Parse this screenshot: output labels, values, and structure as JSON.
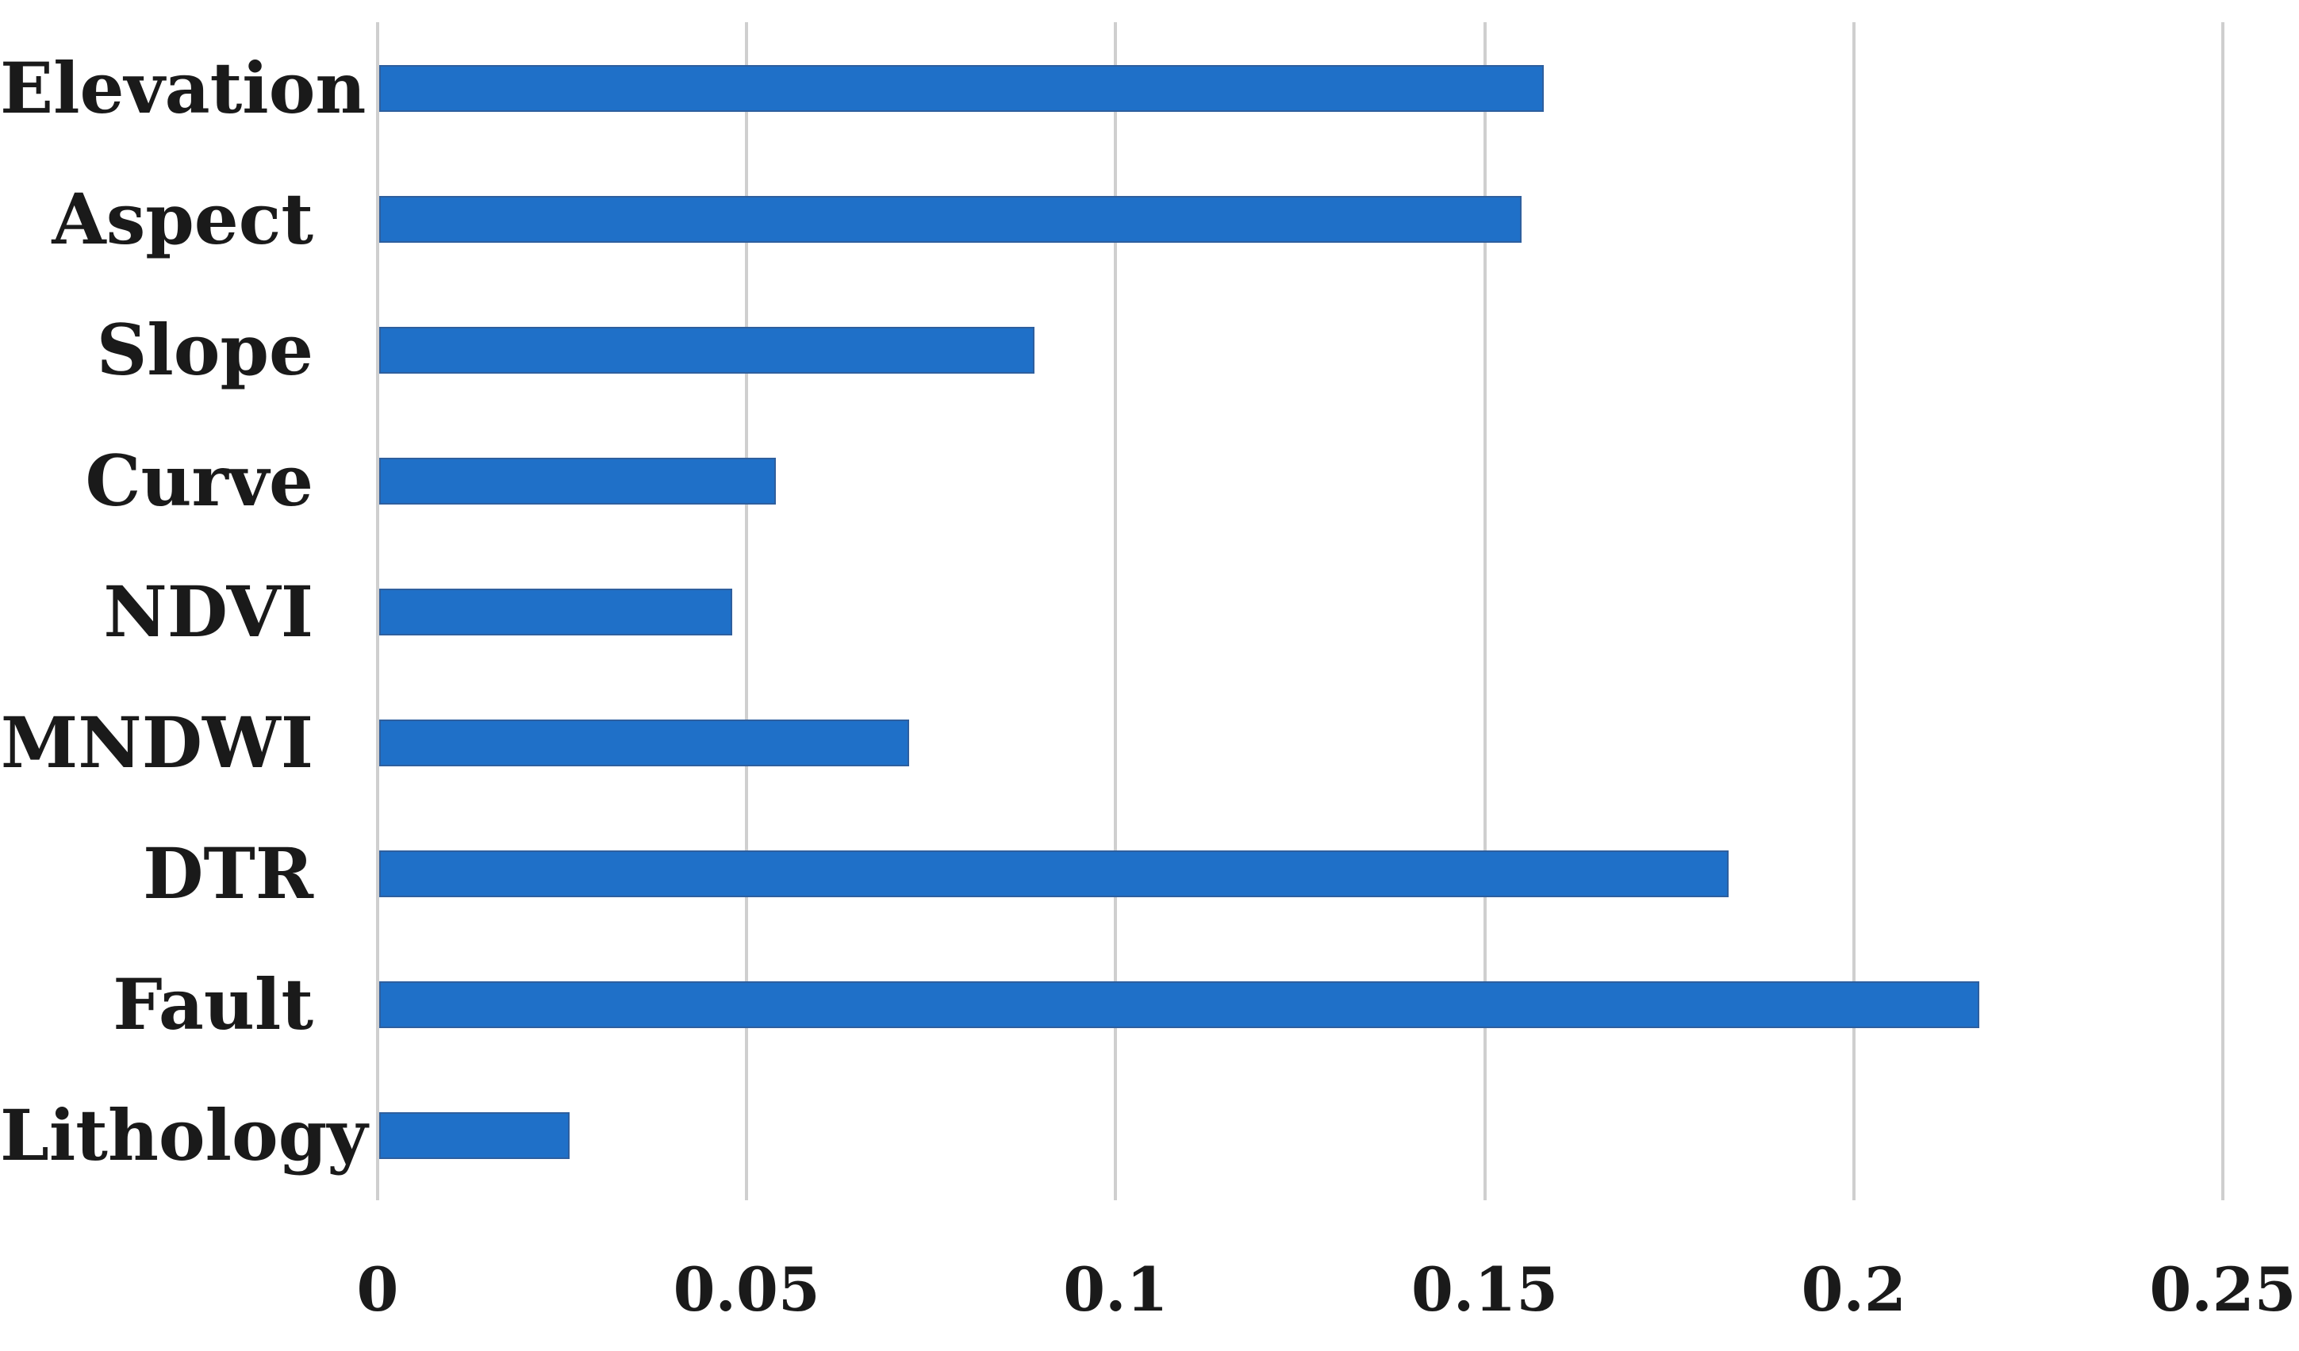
{
  "chart_data": {
    "type": "bar",
    "orientation": "horizontal",
    "title": "",
    "xlabel": "",
    "ylabel": "",
    "categories": [
      "Elevation",
      "Aspect",
      "Slope",
      "Curve",
      "NDVI",
      "MNDWI",
      "DTR",
      "Fault",
      "Lithology"
    ],
    "values": [
      0.158,
      0.155,
      0.089,
      0.054,
      0.048,
      0.072,
      0.183,
      0.217,
      0.026
    ],
    "xlim": [
      0,
      0.25
    ],
    "xticks": [
      0,
      0.05,
      0.1,
      0.15,
      0.2,
      0.25
    ],
    "xtick_labels": [
      "0",
      "0.05",
      "0.1",
      "0.15",
      "0.2",
      "0.25"
    ],
    "grid": true,
    "legend": false,
    "bar_color": "#1F70C8",
    "bar_border_color": "#2E5F9E",
    "gridline_color": "#CFCFCF",
    "text_color": "#1A1A1A",
    "background": "#FFFFFF"
  }
}
